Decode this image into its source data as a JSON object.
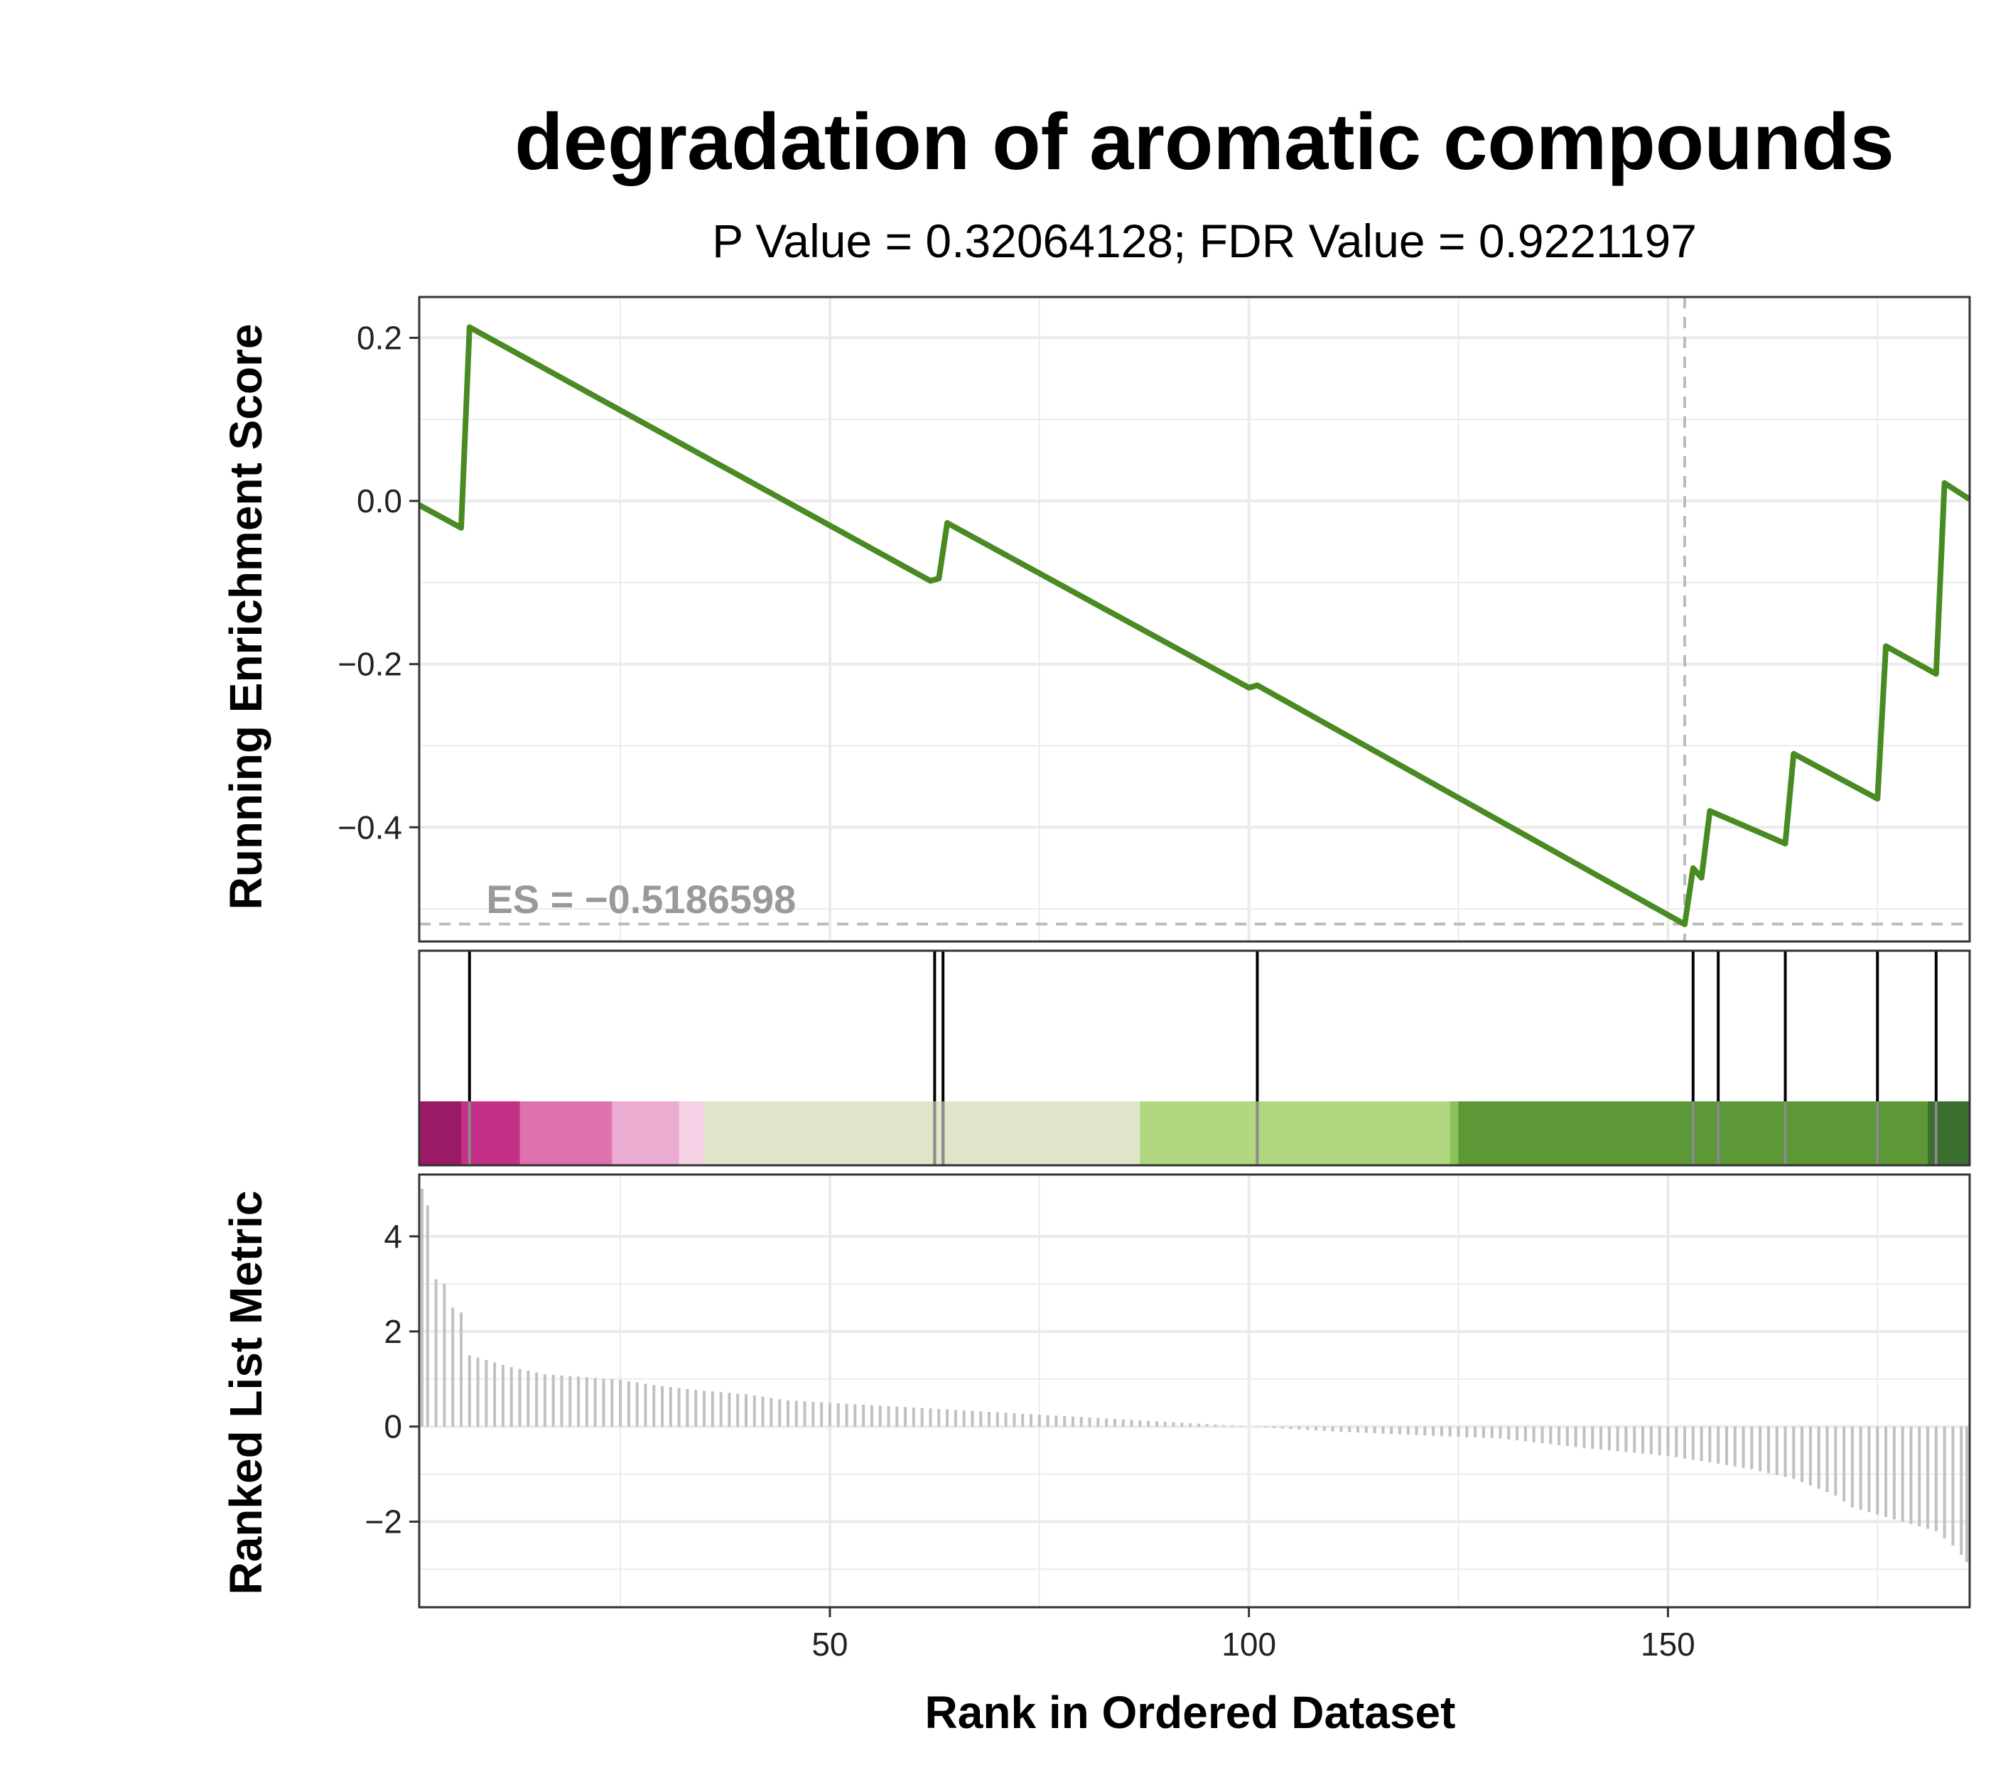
{
  "chart_data": {
    "type": "line",
    "title": "degradation of aromatic compounds",
    "subtitle": "P Value = 0.32064128; FDR Value = 0.9221197",
    "xlabel": "Rank in Ordered Dataset",
    "xlim": [
      1,
      186
    ],
    "x_ticks": [
      50,
      100,
      150
    ],
    "x_tick_labels": [
      "50",
      "100",
      "150"
    ],
    "grid": true,
    "colors": {
      "line": "#4a8a22",
      "ref_line": "#bbbbbb",
      "metric_bar": "#c0c0c0",
      "hit_line": "#000000",
      "es_label": "#999999",
      "panel_border": "#333333",
      "grid": "#ebebeb"
    },
    "panels": {
      "enrichment": {
        "ylabel": "Running Enrichment Score",
        "ylim": [
          -0.54,
          0.25
        ],
        "y_ticks": [
          0.2,
          0.0,
          -0.2,
          -0.4
        ],
        "y_tick_labels": [
          "0.2",
          "0.0",
          "−0.2",
          "−0.4"
        ],
        "es_label": "ES = −0.5186598",
        "es_value": -0.5186598,
        "es_rank": 152,
        "series": [
          {
            "x": [
              1,
              6,
              7,
              62,
              63,
              64,
              100,
              101,
              152,
              153,
              154,
              155,
              164,
              165,
              175,
              176,
              182,
              183,
              186
            ],
            "y": [
              -0.005,
              -0.033,
              0.213,
              -0.098,
              -0.095,
              -0.027,
              -0.229,
              -0.226,
              -0.519,
              -0.45,
              -0.462,
              -0.38,
              -0.42,
              -0.31,
              -0.365,
              -0.178,
              -0.212,
              0.022,
              0.002
            ]
          }
        ]
      },
      "hits": {
        "positions": [
          7,
          62.5,
          63.5,
          101,
          153,
          156,
          164,
          175,
          182
        ],
        "color_bands": [
          {
            "from": 1,
            "to": 6,
            "color": "#9b1a66"
          },
          {
            "from": 6,
            "to": 13,
            "color": "#c42f88"
          },
          {
            "from": 13,
            "to": 24,
            "color": "#dd72ad"
          },
          {
            "from": 24,
            "to": 32,
            "color": "#ecabd0"
          },
          {
            "from": 32,
            "to": 35,
            "color": "#f6d2e6"
          },
          {
            "from": 35,
            "to": 87,
            "color": "#e0e4c8"
          },
          {
            "from": 87,
            "to": 124,
            "color": "#b1d880"
          },
          {
            "from": 124,
            "to": 125,
            "color": "#8cc05a"
          },
          {
            "from": 125,
            "to": 181,
            "color": "#5c9836"
          },
          {
            "from": 181,
            "to": 186,
            "color": "#396f2f"
          }
        ]
      },
      "metric": {
        "ylabel": "Ranked List Metric",
        "ylim": [
          -3.8,
          5.3
        ],
        "y_ticks": [
          4,
          2,
          0,
          -2
        ],
        "y_tick_labels": [
          "4",
          "2",
          "0",
          "−2"
        ],
        "breakpoints": [
          [
            1,
            5.0
          ],
          [
            2,
            4.65
          ],
          [
            3,
            3.1
          ],
          [
            4,
            3.0
          ],
          [
            5,
            2.5
          ],
          [
            6,
            2.4
          ],
          [
            7,
            1.5
          ],
          [
            8,
            1.45
          ],
          [
            9,
            1.4
          ],
          [
            10,
            1.35
          ],
          [
            12,
            1.25
          ],
          [
            16,
            1.1
          ],
          [
            20,
            1.05
          ],
          [
            25,
            0.98
          ],
          [
            30,
            0.85
          ],
          [
            35,
            0.75
          ],
          [
            40,
            0.68
          ],
          [
            45,
            0.55
          ],
          [
            55,
            0.45
          ],
          [
            65,
            0.35
          ],
          [
            75,
            0.25
          ],
          [
            85,
            0.15
          ],
          [
            92,
            0.08
          ],
          [
            100,
            0.0
          ],
          [
            110,
            -0.1
          ],
          [
            120,
            -0.18
          ],
          [
            130,
            -0.25
          ],
          [
            140,
            -0.45
          ],
          [
            150,
            -0.62
          ],
          [
            155,
            -0.75
          ],
          [
            160,
            -0.9
          ],
          [
            165,
            -1.1
          ],
          [
            170,
            -1.45
          ],
          [
            172,
            -1.7
          ],
          [
            178,
            -2.0
          ],
          [
            182,
            -2.2
          ],
          [
            184,
            -2.5
          ],
          [
            185,
            -2.7
          ],
          [
            186,
            -2.85
          ]
        ]
      }
    }
  }
}
